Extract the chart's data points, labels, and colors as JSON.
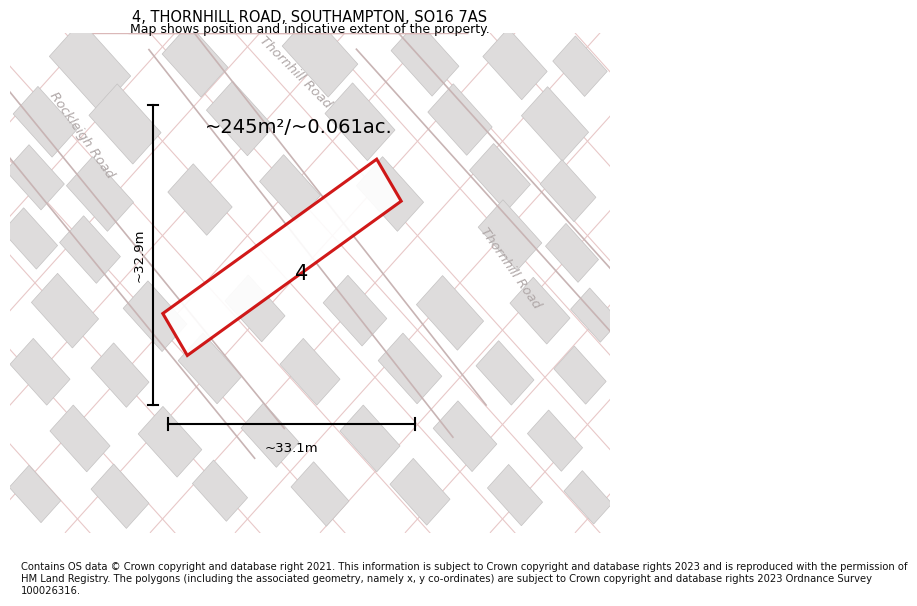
{
  "title": "4, THORNHILL ROAD, SOUTHAMPTON, SO16 7AS",
  "subtitle": "Map shows position and indicative extent of the property.",
  "footer_lines": [
    "Contains OS data © Crown copyright and database right 2021. This information is subject to Crown copyright and database rights 2023 and is reproduced with the permission of",
    "HM Land Registry. The polygons (including the associated geometry, namely x, y co-ordinates) are subject to Crown copyright and database rights 2023 Ordnance Survey",
    "100026316."
  ],
  "area_text": "~245m²/~0.061ac.",
  "label_4": "4",
  "dim_width": "~33.1m",
  "dim_height": "~32.9m",
  "road_label_top": "Thornhill Road",
  "road_label_left": "Rockleigh Road",
  "road_label_right": "Thornhill Road",
  "map_bg": "#f2f0f0",
  "block_color": "#dedcdc",
  "block_edge": "#cccccc",
  "road_pink": "#e8c8c8",
  "road_pink2": "#dbb8b8",
  "property_color": "#cc0000",
  "title_fontsize": 10.5,
  "subtitle_fontsize": 9,
  "footer_fontsize": 7.2,
  "road_label_color": "#b0a8a8",
  "area_text_fontsize": 14
}
